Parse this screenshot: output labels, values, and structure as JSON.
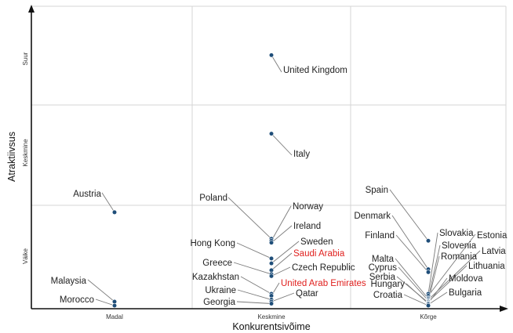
{
  "chart_data": {
    "type": "scatter",
    "xlabel": "Konkurentsivõime",
    "ylabel": "Atraktiivsus",
    "x_categories": [
      "Madal",
      "Keskmine",
      "Kõrge"
    ],
    "y_categories": [
      "Väike",
      "Keskmine",
      "Suur"
    ],
    "grid": true,
    "highlight_color": "#e0201e",
    "point_color": "#1f4e79",
    "points": [
      {
        "name": "United Kingdom",
        "x": "Keskmine",
        "y": 2.55,
        "highlight": false
      },
      {
        "name": "Italy",
        "x": "Keskmine",
        "y": 1.75,
        "highlight": false
      },
      {
        "name": "Austria",
        "x": "Madal",
        "y": 0.95,
        "highlight": false
      },
      {
        "name": "Poland",
        "x": "Keskmine",
        "y": 0.68,
        "highlight": false
      },
      {
        "name": "Norway",
        "x": "Keskmine",
        "y": 0.66,
        "highlight": false
      },
      {
        "name": "Ireland",
        "x": "Keskmine",
        "y": 0.64,
        "highlight": false
      },
      {
        "name": "Hong Kong",
        "x": "Keskmine",
        "y": 0.48,
        "highlight": false
      },
      {
        "name": "Sweden",
        "x": "Keskmine",
        "y": 0.43,
        "highlight": false
      },
      {
        "name": "Saudi Arabia",
        "x": "Keskmine",
        "y": 0.36,
        "highlight": true
      },
      {
        "name": "Greece",
        "x": "Keskmine",
        "y": 0.32,
        "highlight": false
      },
      {
        "name": "Czech Republic",
        "x": "Keskmine",
        "y": 0.3,
        "highlight": false
      },
      {
        "name": "Kazakhstan",
        "x": "Keskmine",
        "y": 0.12,
        "highlight": false
      },
      {
        "name": "United Arab Emirates",
        "x": "Keskmine",
        "y": 0.1,
        "highlight": true
      },
      {
        "name": "Ukraine",
        "x": "Keskmine",
        "y": 0.06,
        "highlight": false
      },
      {
        "name": "Qatar",
        "x": "Keskmine",
        "y": 0.04,
        "highlight": false
      },
      {
        "name": "Georgia",
        "x": "Keskmine",
        "y": 0.02,
        "highlight": false
      },
      {
        "name": "Malaysia",
        "x": "Madal",
        "y": 0.04,
        "highlight": false
      },
      {
        "name": "Morocco",
        "x": "Madal",
        "y": 0.0,
        "highlight": false
      },
      {
        "name": "Spain",
        "x": "Kõrge",
        "y": 0.66,
        "highlight": false
      },
      {
        "name": "Denmark",
        "x": "Kõrge",
        "y": 0.37,
        "highlight": false
      },
      {
        "name": "Finland",
        "x": "Kõrge",
        "y": 0.34,
        "highlight": false
      },
      {
        "name": "Slovakia",
        "x": "Kõrge",
        "y": 0.12,
        "highlight": false
      },
      {
        "name": "Estonia",
        "x": "Kõrge",
        "y": 0.1,
        "highlight": false
      },
      {
        "name": "Slovenia",
        "x": "Kõrge",
        "y": 0.08,
        "highlight": false
      },
      {
        "name": "Malta",
        "x": "Kõrge",
        "y": 0.07,
        "highlight": false
      },
      {
        "name": "Latvia",
        "x": "Kõrge",
        "y": 0.06,
        "highlight": false
      },
      {
        "name": "Cyprus",
        "x": "Kõrge",
        "y": 0.05,
        "highlight": false
      },
      {
        "name": "Romania",
        "x": "Kõrge",
        "y": 0.045,
        "highlight": false
      },
      {
        "name": "Lithuania",
        "x": "Kõrge",
        "y": 0.04,
        "highlight": false
      },
      {
        "name": "Serbia",
        "x": "Kõrge",
        "y": 0.03,
        "highlight": false
      },
      {
        "name": "Moldova",
        "x": "Kõrge",
        "y": 0.025,
        "highlight": false
      },
      {
        "name": "Hungary",
        "x": "Kõrge",
        "y": 0.02,
        "highlight": false
      },
      {
        "name": "Bulgaria",
        "x": "Kõrge",
        "y": 0.01,
        "highlight": false
      },
      {
        "name": "Croatia",
        "x": "Kõrge",
        "y": 0.0,
        "highlight": false
      }
    ]
  }
}
